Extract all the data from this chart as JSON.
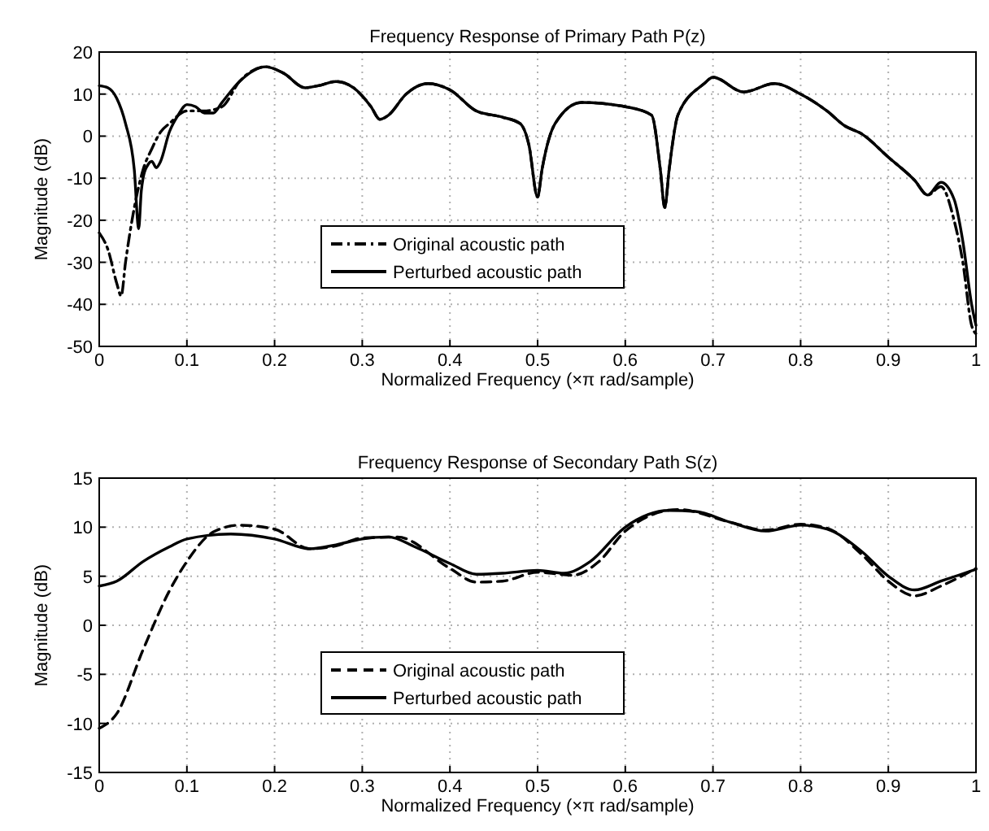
{
  "chart_data": [
    {
      "type": "line",
      "title": "Frequency Response of Primary Path P(z)",
      "xlabel": "Normalized Frequency  (×π rad/sample)",
      "ylabel": "Magnitude (dB)",
      "xlim": [
        0,
        1
      ],
      "ylim": [
        -50,
        20
      ],
      "xticks": [
        0,
        0.1,
        0.2,
        0.3,
        0.4,
        0.5,
        0.6,
        0.7,
        0.8,
        0.9,
        1
      ],
      "yticks": [
        -50,
        -40,
        -30,
        -20,
        -10,
        0,
        10,
        20
      ],
      "grid": true,
      "legend": "bottom",
      "series": [
        {
          "name": "Original acoustic path",
          "color": "#000000",
          "line_style": "dashdot",
          "x": [
            0,
            0.01,
            0.02,
            0.025,
            0.03,
            0.04,
            0.05,
            0.06,
            0.07,
            0.08,
            0.1,
            0.12,
            0.14,
            0.16,
            0.19,
            0.21,
            0.235,
            0.25,
            0.27,
            0.29,
            0.31,
            0.32,
            0.33,
            0.35,
            0.375,
            0.4,
            0.43,
            0.46,
            0.48,
            0.49,
            0.5,
            0.505,
            0.52,
            0.55,
            0.6,
            0.63,
            0.64,
            0.645,
            0.65,
            0.66,
            0.69,
            0.7,
            0.735,
            0.77,
            0.8,
            0.83,
            0.85,
            0.87,
            0.9,
            0.93,
            0.945,
            0.96,
            0.975,
            0.985,
            0.995,
            1
          ],
          "values": [
            -23,
            -27,
            -35,
            -38,
            -30,
            -17,
            -8,
            -3,
            1,
            3,
            6,
            6,
            7,
            13,
            16.5,
            15,
            11.5,
            12,
            13,
            11.5,
            7,
            4,
            5,
            10,
            12.5,
            11,
            6,
            4.5,
            3,
            -2,
            -14.5,
            -8,
            3,
            8,
            7,
            5,
            -8,
            -17,
            -8,
            5,
            12.5,
            14,
            10.5,
            12.5,
            10,
            6,
            2.5,
            0.5,
            -5,
            -10.5,
            -14,
            -12,
            -20,
            -30,
            -45,
            -47
          ]
        },
        {
          "name": "Perturbed acoustic path",
          "color": "#000000",
          "line_style": "solid",
          "x": [
            0,
            0.01,
            0.02,
            0.03,
            0.04,
            0.045,
            0.048,
            0.05,
            0.055,
            0.06,
            0.065,
            0.07,
            0.08,
            0.09,
            0.1,
            0.11,
            0.12,
            0.13,
            0.14,
            0.16,
            0.19,
            0.21,
            0.235,
            0.25,
            0.27,
            0.29,
            0.31,
            0.32,
            0.33,
            0.35,
            0.375,
            0.4,
            0.43,
            0.46,
            0.48,
            0.49,
            0.5,
            0.505,
            0.52,
            0.55,
            0.6,
            0.63,
            0.64,
            0.645,
            0.65,
            0.66,
            0.69,
            0.7,
            0.735,
            0.77,
            0.8,
            0.83,
            0.85,
            0.87,
            0.9,
            0.93,
            0.945,
            0.96,
            0.975,
            0.985,
            0.995,
            1
          ],
          "values": [
            12,
            11.5,
            9,
            3,
            -8,
            -22,
            -13,
            -10,
            -7,
            -6,
            -7.5,
            -6,
            1,
            5,
            7.5,
            7,
            5.5,
            5.5,
            8,
            13,
            16.5,
            15,
            11.5,
            12,
            13,
            11.5,
            7,
            4,
            5,
            10,
            12.5,
            11,
            6,
            4.5,
            3,
            -2,
            -14.5,
            -8,
            3,
            8,
            7,
            5,
            -8,
            -17,
            -8,
            5,
            12.5,
            14,
            10.5,
            12.5,
            10,
            6,
            2.5,
            0.5,
            -5,
            -10.5,
            -14,
            -11,
            -15,
            -25,
            -40,
            -45
          ]
        }
      ]
    },
    {
      "type": "line",
      "title": "Frequency Response of Secondary Path S(z)",
      "xlabel": "Normalized Frequency  (×π rad/sample)",
      "ylabel": "Magnitude (dB)",
      "xlim": [
        0,
        1
      ],
      "ylim": [
        -15,
        15
      ],
      "xticks": [
        0,
        0.1,
        0.2,
        0.3,
        0.4,
        0.5,
        0.6,
        0.7,
        0.8,
        0.9,
        1
      ],
      "yticks": [
        -15,
        -10,
        -5,
        0,
        5,
        10,
        15
      ],
      "grid": true,
      "legend": "bottom",
      "series": [
        {
          "name": "Original acoustic path",
          "color": "#000000",
          "line_style": "dashed",
          "x": [
            0,
            0.02,
            0.05,
            0.08,
            0.1,
            0.13,
            0.16,
            0.2,
            0.24,
            0.27,
            0.3,
            0.34,
            0.4,
            0.43,
            0.46,
            0.5,
            0.54,
            0.57,
            0.6,
            0.66,
            0.72,
            0.76,
            0.8,
            0.83,
            0.87,
            0.9,
            0.93,
            0.96,
            1
          ],
          "values": [
            -10.5,
            -9,
            -2.5,
            3.5,
            6.5,
            9.5,
            10.2,
            9.8,
            7.8,
            8.1,
            8.9,
            9,
            5.8,
            4.4,
            4.5,
            5.4,
            5.1,
            6.5,
            9.6,
            11.8,
            10.5,
            9.7,
            10.3,
            9.9,
            7.2,
            4.5,
            3,
            4,
            5.8
          ]
        },
        {
          "name": "Perturbed acoustic path",
          "color": "#000000",
          "line_style": "solid",
          "x": [
            0,
            0.02,
            0.05,
            0.08,
            0.1,
            0.15,
            0.2,
            0.24,
            0.27,
            0.3,
            0.33,
            0.36,
            0.4,
            0.43,
            0.46,
            0.5,
            0.53,
            0.56,
            0.6,
            0.65,
            0.68,
            0.72,
            0.76,
            0.8,
            0.83,
            0.87,
            0.9,
            0.93,
            0.96,
            1
          ],
          "values": [
            4,
            4.5,
            6.5,
            8,
            8.8,
            9.3,
            8.8,
            7.8,
            8.2,
            8.8,
            9,
            8,
            6.3,
            5.2,
            5.3,
            5.6,
            5.3,
            6.5,
            10,
            11.7,
            11.6,
            10.5,
            9.6,
            10.2,
            9.8,
            7.5,
            5,
            3.6,
            4.5,
            5.7
          ]
        }
      ]
    }
  ]
}
